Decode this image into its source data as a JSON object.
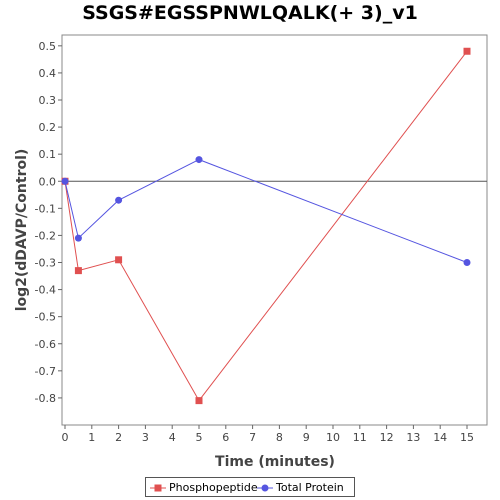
{
  "chart_data": {
    "type": "line",
    "title": "SSGS#EGSSPNWLQALK(+ 3)_v1",
    "xlabel": "Time (minutes)",
    "ylabel": "log2(dDAVP/Control)",
    "xlim": [
      0,
      16
    ],
    "ylim": [
      -0.9,
      0.54
    ],
    "xticks": [
      0,
      1,
      2,
      3,
      4,
      5,
      6,
      7,
      8,
      9,
      10,
      11,
      12,
      13,
      14,
      15
    ],
    "yticks": [
      -0.8,
      -0.7,
      -0.6,
      -0.5,
      -0.4,
      -0.3,
      -0.2,
      -0.1,
      0.0,
      0.1,
      0.2,
      0.3,
      0.4,
      0.5
    ],
    "ytick_labels": [
      "-0.8",
      "-0.7",
      "-0.6",
      "-0.5",
      "-0.4",
      "-0.3",
      "-0.2",
      "-0.1",
      "0.0",
      "0.1",
      "0.2",
      "0.3",
      "0.4",
      "0.5"
    ],
    "legend_position": "bottom",
    "grid": false,
    "series": [
      {
        "name": "Phosphopeptide",
        "color": "#e05050",
        "marker": "square",
        "x": [
          0,
          0.5,
          2,
          5,
          15
        ],
        "y": [
          0.0,
          -0.33,
          -0.29,
          -0.81,
          0.48
        ]
      },
      {
        "name": "Total Protein",
        "color": "#5555e0",
        "marker": "circle",
        "x": [
          0,
          0.5,
          2,
          5,
          15
        ],
        "y": [
          0.0,
          -0.21,
          -0.07,
          0.08,
          -0.3
        ]
      }
    ]
  }
}
